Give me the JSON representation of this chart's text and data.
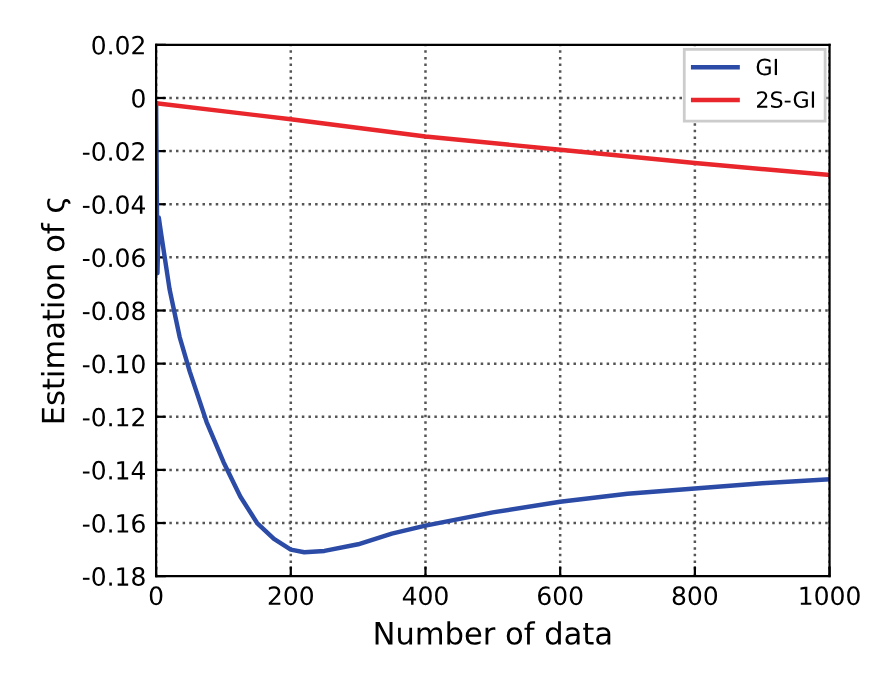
{
  "chart_data": {
    "type": "line",
    "xlabel": "Number of data",
    "ylabel": "Estimation of ς",
    "xlim": [
      0,
      1000
    ],
    "xticks": [
      0,
      200,
      400,
      600,
      800,
      1000
    ],
    "ylim": [
      -0.18,
      0.02
    ],
    "yticks": [
      {
        "value": 0.02,
        "label": "0.02"
      },
      {
        "value": 0,
        "label": "0"
      },
      {
        "value": -0.02,
        "label": "-0.02"
      },
      {
        "value": -0.04,
        "label": "-0.04"
      },
      {
        "value": -0.06,
        "label": "-0.06"
      },
      {
        "value": -0.08,
        "label": "-0.08"
      },
      {
        "value": -0.1,
        "label": "-0.10"
      },
      {
        "value": -0.12,
        "label": "-0.12"
      },
      {
        "value": -0.14,
        "label": "-0.14"
      },
      {
        "value": -0.16,
        "label": "-0.16"
      },
      {
        "value": -0.18,
        "label": "-0.18"
      }
    ],
    "grid": true,
    "legend": "top right",
    "line_style": "solid",
    "marker": "none",
    "series": [
      {
        "name": "GI",
        "color": "#2b4ba6",
        "x": [
          0,
          2,
          4,
          8,
          20,
          35,
          50,
          75,
          100,
          125,
          150,
          175,
          200,
          220,
          250,
          300,
          350,
          400,
          500,
          600,
          700,
          800,
          900,
          1000
        ],
        "values": [
          -0.002,
          -0.066,
          -0.045,
          -0.052,
          -0.072,
          -0.09,
          -0.103,
          -0.122,
          -0.137,
          -0.15,
          -0.16,
          -0.166,
          -0.17,
          -0.171,
          -0.1705,
          -0.168,
          -0.164,
          -0.161,
          -0.156,
          -0.152,
          -0.149,
          -0.147,
          -0.145,
          -0.1435
        ]
      },
      {
        "name": "2S-GI",
        "color": "#e8262b",
        "x": [
          0,
          200,
          400,
          600,
          800,
          1000
        ],
        "values": [
          -0.002,
          -0.008,
          -0.0145,
          -0.0195,
          -0.0245,
          -0.029
        ]
      }
    ]
  }
}
